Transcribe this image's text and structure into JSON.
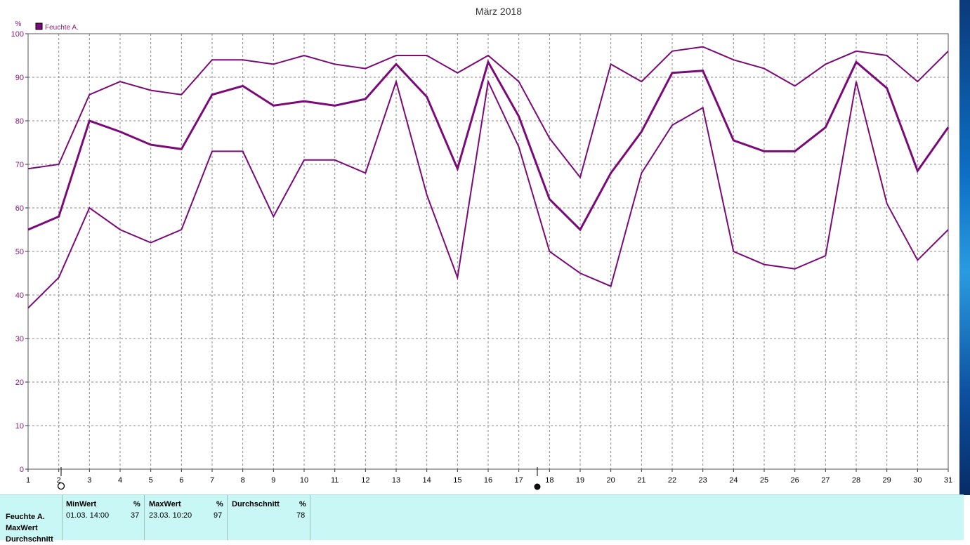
{
  "chart_data": {
    "type": "line",
    "title": "März 2018",
    "ylabel": "%",
    "ylim": [
      0,
      100
    ],
    "yticks": [
      0,
      10,
      20,
      30,
      40,
      50,
      60,
      70,
      80,
      90,
      100
    ],
    "x": [
      1,
      2,
      3,
      4,
      5,
      6,
      7,
      8,
      9,
      10,
      11,
      12,
      13,
      14,
      15,
      16,
      17,
      18,
      19,
      20,
      21,
      22,
      23,
      24,
      25,
      26,
      27,
      28,
      29,
      30,
      31
    ],
    "xlim": [
      1,
      31
    ],
    "grid": true,
    "legend": {
      "position": "top-left",
      "entries": [
        "Feuchte A."
      ]
    },
    "line_color": "#7a0a78",
    "series": [
      {
        "name": "Feuchte A.",
        "role": "max",
        "values": [
          69,
          70,
          86,
          89,
          87,
          86,
          94,
          94,
          93,
          95,
          93,
          92,
          95,
          95,
          91,
          95,
          89,
          76,
          67,
          93,
          89,
          96,
          97,
          94,
          92,
          88,
          93,
          96,
          95,
          89,
          96
        ]
      },
      {
        "name": "Feuchte A.",
        "role": "avg",
        "values": [
          55,
          58,
          80,
          77.5,
          74.5,
          73.5,
          86,
          88,
          83.5,
          84.5,
          83.5,
          85,
          93,
          85.5,
          69,
          93.5,
          81,
          62,
          55,
          68,
          77.5,
          91,
          91.5,
          75.5,
          73,
          73,
          78.5,
          93.5,
          87.5,
          68.5,
          78.5
        ]
      },
      {
        "name": "Feuchte A.",
        "role": "min",
        "values": [
          37,
          44,
          60,
          55,
          52,
          55,
          73,
          73,
          58,
          71,
          71,
          68,
          89,
          63,
          44,
          89,
          74,
          50,
          45,
          42,
          68,
          79,
          83,
          50,
          47,
          46,
          49,
          89,
          61,
          48,
          55
        ]
      }
    ]
  },
  "stats": {
    "series_label": "Feuchte A.",
    "row_labels": [
      "Feuchte A.",
      "MaxWert",
      "Durchschnitt"
    ],
    "columns": [
      {
        "header": "MinWert",
        "unit": "%",
        "timestamp": "01.03.  14:00",
        "value": "37"
      },
      {
        "header": "MaxWert",
        "unit": "%",
        "timestamp": "23.03.  10:20",
        "value": "97"
      },
      {
        "header": "Durchschnitt",
        "unit": "%",
        "timestamp": "",
        "value": "78"
      }
    ]
  }
}
